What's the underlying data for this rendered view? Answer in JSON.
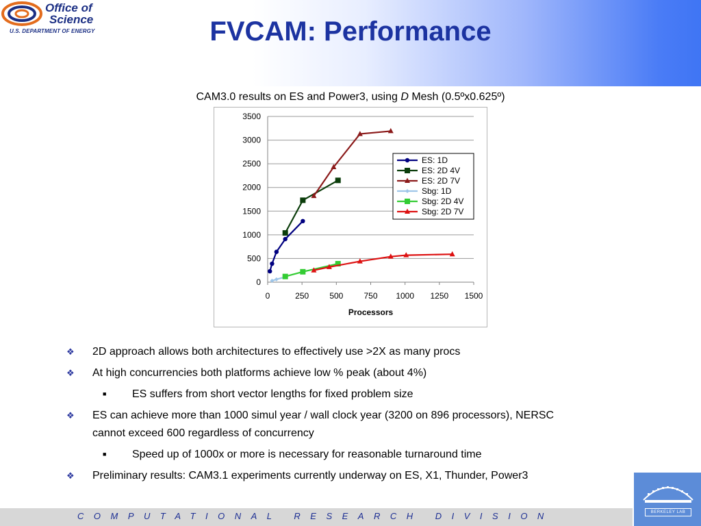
{
  "header": {
    "logo_line1": "Office of",
    "logo_line2": "Science",
    "logo_dept": "U.S. DEPARTMENT OF ENERGY",
    "title": "FVCAM: Performance"
  },
  "caption": {
    "prefix": "CAM3.0 results on ES and Power3, using ",
    "italic": "D",
    "suffix": " Mesh (0.5ºx0.625º)"
  },
  "chart_data": {
    "type": "line",
    "title": "",
    "xlabel": "Processors",
    "ylabel": "",
    "xlim": [
      0,
      1500
    ],
    "ylim": [
      0,
      3500
    ],
    "x_ticks": [
      "0",
      "250",
      "500",
      "750",
      "1000",
      "1250",
      "1500"
    ],
    "y_ticks": [
      "0",
      "500",
      "1000",
      "1500",
      "2000",
      "2500",
      "3000",
      "3500"
    ],
    "grid": "horizontal",
    "legend": "right",
    "series": [
      {
        "name": "ES: 1D",
        "color": "#000080",
        "marker": "circle",
        "x": [
          16,
          32,
          64,
          128,
          256
        ],
        "y": [
          230,
          390,
          640,
          910,
          1290
        ]
      },
      {
        "name": "ES: 2D 4V",
        "color": "#0b3d0b",
        "marker": "square",
        "x": [
          128,
          256,
          512
        ],
        "y": [
          1040,
          1730,
          2150
        ]
      },
      {
        "name": "ES: 2D 7V",
        "color": "#8b1a1a",
        "marker": "triangle",
        "x": [
          336,
          480,
          672,
          896
        ],
        "y": [
          1820,
          2430,
          3130,
          3190
        ]
      },
      {
        "name": "Sbg: 1D",
        "color": "#9ec5e8",
        "marker": "diamond",
        "x": [
          32,
          64,
          128
        ],
        "y": [
          30,
          60,
          110
        ]
      },
      {
        "name": "Sbg: 2D 4V",
        "color": "#33cc33",
        "marker": "square",
        "x": [
          128,
          256,
          512
        ],
        "y": [
          120,
          220,
          390
        ]
      },
      {
        "name": "Sbg: 2D 7V",
        "color": "#dd1111",
        "marker": "triangle",
        "x": [
          336,
          448,
          672,
          896,
          1008,
          1344
        ],
        "y": [
          250,
          320,
          440,
          540,
          570,
          590
        ]
      }
    ]
  },
  "bullets": [
    {
      "level": 1,
      "text": "2D approach allows both architectures to effectively use >2X as many procs"
    },
    {
      "level": 1,
      "text": "At high concurrencies both platforms achieve low % peak (about 4%)"
    },
    {
      "level": 2,
      "text": "ES suffers from short vector lengths for fixed problem size"
    },
    {
      "level": 1,
      "text": "ES can achieve more than 1000 simul year / wall clock year (3200 on 896 processors), NERSC"
    },
    {
      "level": 0,
      "text": "cannot exceed 600 regardless of concurrency"
    },
    {
      "level": 2,
      "text": "Speed up of 1000x or more is necessary for reasonable turnaround time"
    },
    {
      "level": 1,
      "text": "Preliminary results: CAM3.1 experiments currently underway on ES, X1, Thunder, Power3"
    }
  ],
  "footer": {
    "text": "COMPUTATIONAL RESEARCH DIVISION",
    "lab_logo_label": "BERKELEY LAB"
  },
  "icons": {
    "bullet": "diamond-bullet-icon",
    "sub_bullet": "square-bullet-icon"
  }
}
